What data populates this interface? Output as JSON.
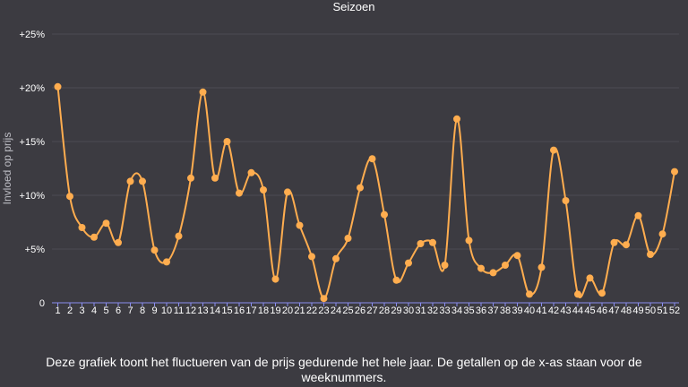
{
  "chart_data": {
    "type": "line",
    "title": "Seizoen",
    "xlabel": "",
    "ylabel": "Invloed op prijs",
    "ylim": [
      0,
      25
    ],
    "yticks": [
      {
        "value": 0,
        "label": "0"
      },
      {
        "value": 5,
        "label": "+5%"
      },
      {
        "value": 10,
        "label": "+10%"
      },
      {
        "value": 15,
        "label": "+15%"
      },
      {
        "value": 20,
        "label": "+20%"
      },
      {
        "value": 25,
        "label": "+25%"
      }
    ],
    "grid": true,
    "colors": {
      "line": "#ffad4f",
      "background": "#3c3b41",
      "grid": "#4c4b53",
      "axis": "#8a8df0"
    },
    "categories": [
      "1",
      "2",
      "3",
      "4",
      "5",
      "6",
      "7",
      "8",
      "9",
      "10",
      "11",
      "12",
      "13",
      "14",
      "15",
      "16",
      "17",
      "18",
      "19",
      "20",
      "21",
      "22",
      "23",
      "24",
      "25",
      "26",
      "27",
      "28",
      "29",
      "30",
      "31",
      "32",
      "33",
      "34",
      "35",
      "36",
      "37",
      "38",
      "39",
      "40",
      "41",
      "42",
      "43",
      "44",
      "45",
      "46",
      "47",
      "48",
      "49",
      "50",
      "51",
      "52"
    ],
    "values": [
      20.1,
      9.9,
      7.0,
      6.1,
      7.4,
      5.6,
      11.3,
      11.3,
      4.9,
      3.8,
      6.2,
      11.6,
      19.6,
      11.6,
      15.0,
      10.2,
      12.1,
      10.5,
      2.2,
      10.3,
      7.2,
      4.3,
      0.4,
      4.1,
      6.0,
      10.7,
      13.4,
      8.2,
      2.1,
      3.7,
      5.5,
      5.6,
      3.5,
      17.1,
      5.8,
      3.2,
      2.8,
      3.5,
      4.4,
      0.8,
      3.3,
      14.2,
      9.5,
      0.8,
      2.3,
      0.9,
      5.6,
      5.4,
      8.1,
      4.5,
      6.4,
      12.2
    ]
  },
  "caption": "Deze grafiek toont het fluctueren van de prijs gedurende het hele jaar. De getallen op de x-as staan voor de weeknummers."
}
